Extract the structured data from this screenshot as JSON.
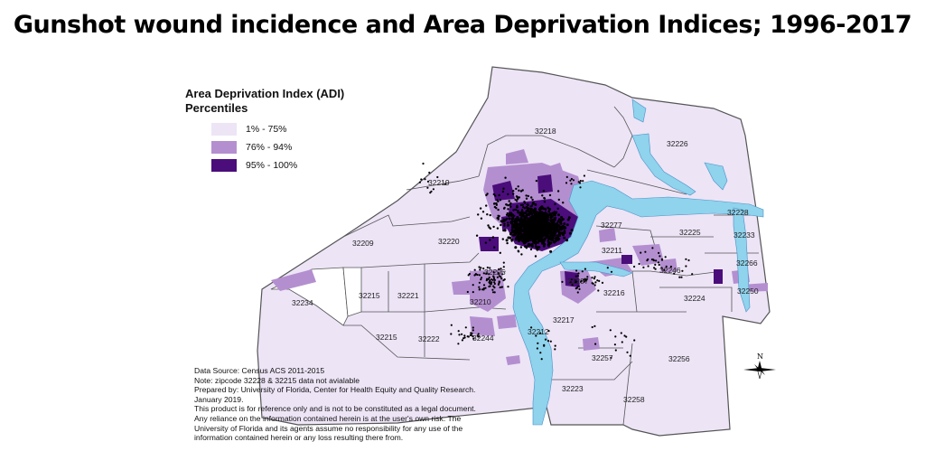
{
  "title": "Gunshot wound incidence and Area Deprivation Indices; 1996-2017",
  "legend": {
    "title_line1": "Area Deprivation Index (ADI)",
    "title_line2": "Percentiles",
    "items": [
      {
        "label": "1% - 75%",
        "color": "#ede4f6"
      },
      {
        "label": "76% - 94%",
        "color": "#b48fd0"
      },
      {
        "label": "95% - 100%",
        "color": "#4a0d7a"
      }
    ]
  },
  "colors": {
    "low": "#ede4f6",
    "mid": "#b48fd0",
    "high": "#4a0d7a",
    "water": "#8fd3ec",
    "boundary": "#555555",
    "no_data": "#ffffff"
  },
  "zip_labels": [
    "32218",
    "32226",
    "32219",
    "32228",
    "32209",
    "32220",
    "32277",
    "32225",
    "32233",
    "32211",
    "32266",
    "32205",
    "32246",
    "32215",
    "32221",
    "32207",
    "32216",
    "32224",
    "32250",
    "32234",
    "32210",
    "32217",
    "32215",
    "32222",
    "32244",
    "32212",
    "32257",
    "32256",
    "32223",
    "32258"
  ],
  "compass": {
    "label": "N"
  },
  "notes": [
    "Data Source: Census ACS 2011-2015",
    "Note: zipcode 32228 & 32215 data not avialable",
    "Prepared by: University of Florida, Center for Health Equity and Quality Research.",
    "January 2019.",
    "This product is for reference only and is not to be constituted as a legal document.",
    "Any reliance on the information contained herein is at the user's own risk. The",
    "University of Florida and its agents assume no responsibility for any use of the",
    "information contained herein or any loss resulting there from."
  ]
}
